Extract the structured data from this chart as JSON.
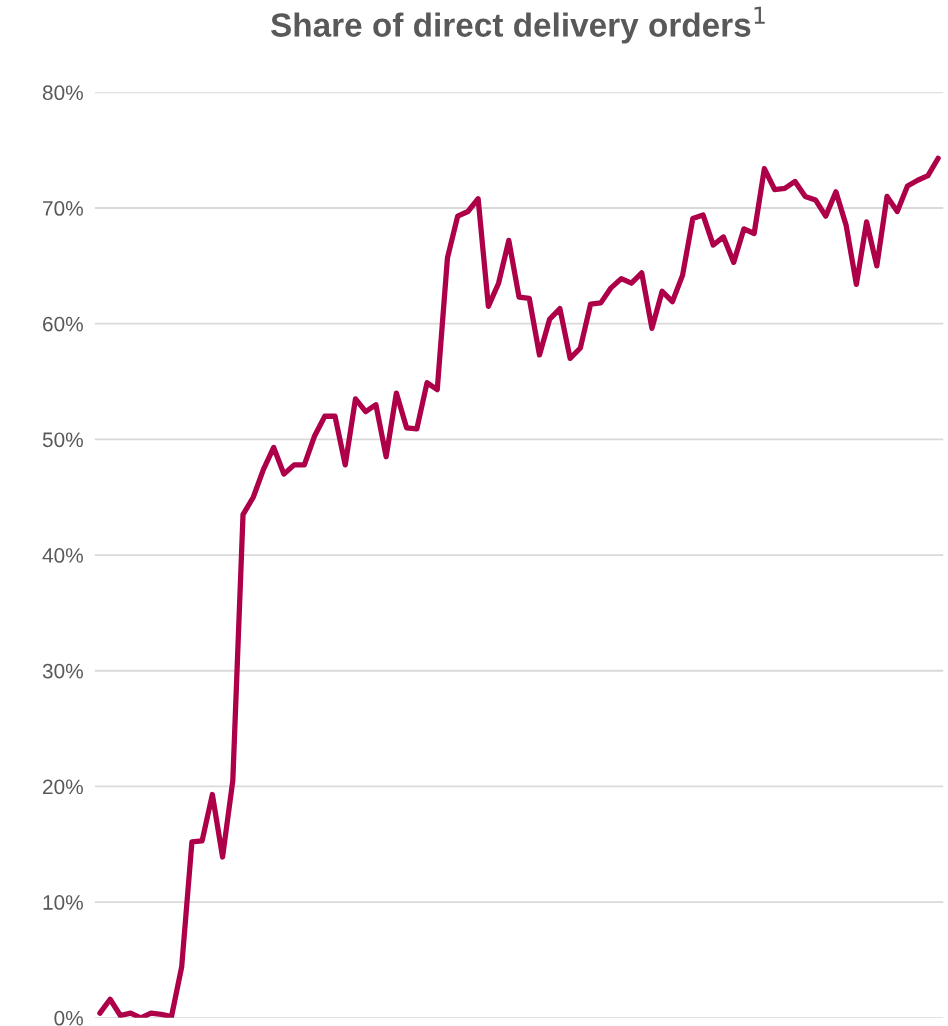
{
  "chart_data": {
    "type": "line",
    "title": "Share of direct delivery orders$^{1}$",
    "categories": [
      null,
      null,
      null,
      null,
      null,
      null,
      null,
      null,
      null,
      null,
      null,
      null,
      null,
      null,
      null,
      null,
      null,
      null,
      null,
      null,
      null,
      null,
      null,
      null,
      null,
      null,
      null,
      null,
      null,
      null,
      null,
      null,
      null,
      null,
      null,
      null,
      null,
      null,
      null,
      null,
      null,
      null,
      null,
      null,
      null,
      null,
      null,
      null,
      null,
      null,
      null,
      null,
      null,
      null,
      null,
      null,
      null,
      null,
      null,
      null,
      null,
      null,
      null,
      null,
      null,
      null,
      null,
      null,
      null,
      null,
      null,
      null,
      null,
      null,
      null,
      null,
      null,
      null,
      null,
      null,
      null,
      null,
      null
    ],
    "series": [
      {
        "color": "#ad0049",
        "values": [
          0.4,
          1.6,
          0.2,
          0.4,
          0.0,
          0.4,
          0.3,
          0.1,
          4.4,
          15.2,
          15.3,
          19.3,
          13.9,
          20.5,
          43.5,
          45.0,
          47.4,
          49.3,
          47.0,
          47.8,
          47.8,
          50.3,
          52.0,
          52.0,
          47.8,
          53.5,
          52.4,
          53.0,
          48.5,
          54.0,
          51.0,
          50.9,
          54.9,
          54.3,
          65.7,
          69.3,
          69.7,
          70.8,
          61.5,
          63.5,
          67.2,
          62.3,
          62.2,
          57.3,
          60.4,
          61.3,
          57.0,
          57.9,
          61.7,
          61.8,
          63.1,
          63.9,
          63.5,
          64.4,
          59.6,
          62.8,
          61.9,
          64.2,
          69.1,
          69.4,
          66.8,
          67.5,
          65.3,
          68.2,
          67.8,
          73.4,
          71.6,
          71.7,
          72.3,
          71.0,
          70.7,
          69.3,
          71.4,
          68.5,
          63.4,
          68.8,
          65.0,
          71.0,
          69.7,
          71.9,
          72.4,
          72.8,
          74.3
        ]
      }
    ],
    "ylim": [
      0,
      80
    ],
    "yticks": [
      {
        "value": 0,
        "label": "0%"
      },
      {
        "value": 10,
        "label": "10%"
      },
      {
        "value": 20,
        "label": "20%"
      },
      {
        "value": 30,
        "label": "30%"
      },
      {
        "value": 40,
        "label": "40%"
      },
      {
        "value": 50,
        "label": "50%"
      },
      {
        "value": 60,
        "label": "60%"
      },
      {
        "value": 70,
        "label": "70%"
      },
      {
        "value": 80,
        "label": "80%"
      }
    ],
    "grid": "y",
    "marker": "none",
    "line_style": "solid"
  }
}
